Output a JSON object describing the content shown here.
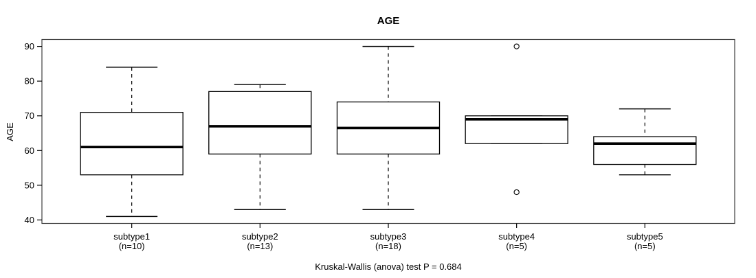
{
  "chart_data": {
    "type": "boxplot",
    "title": "AGE",
    "xlabel": "",
    "ylabel": "AGE",
    "footer": "Kruskal-Wallis (anova) test P = 0.684",
    "ylim": [
      39,
      92
    ],
    "yticks": [
      40,
      50,
      60,
      70,
      80,
      90
    ],
    "grid": false,
    "legend": "none",
    "categories": [
      "subtype1",
      "subtype2",
      "subtype3",
      "subtype4",
      "subtype5"
    ],
    "counts": [
      10,
      13,
      18,
      5,
      5
    ],
    "count_label_prefix": "(n=",
    "count_label_suffix": ")",
    "series": [
      {
        "name": "subtype1",
        "n": 10,
        "whisker_low": 41,
        "q1": 53,
        "median": 61,
        "q3": 71,
        "whisker_high": 84,
        "outliers": []
      },
      {
        "name": "subtype2",
        "n": 13,
        "whisker_low": 43,
        "q1": 59,
        "median": 67,
        "q3": 77,
        "whisker_high": 79,
        "outliers": []
      },
      {
        "name": "subtype3",
        "n": 18,
        "whisker_low": 43,
        "q1": 59,
        "median": 66.5,
        "q3": 74,
        "whisker_high": 90,
        "outliers": []
      },
      {
        "name": "subtype4",
        "n": 5,
        "whisker_low": 62,
        "q1": 62,
        "median": 69,
        "q3": 70,
        "whisker_high": 70,
        "outliers": [
          90,
          48
        ]
      },
      {
        "name": "subtype5",
        "n": 5,
        "whisker_low": 53,
        "q1": 56,
        "median": 62,
        "q3": 64,
        "whisker_high": 72,
        "outliers": []
      }
    ],
    "colors": {
      "line": "#000000",
      "frame": "#3c3c3c",
      "box_fill": "#ffffff",
      "background": "#ffffff"
    }
  }
}
